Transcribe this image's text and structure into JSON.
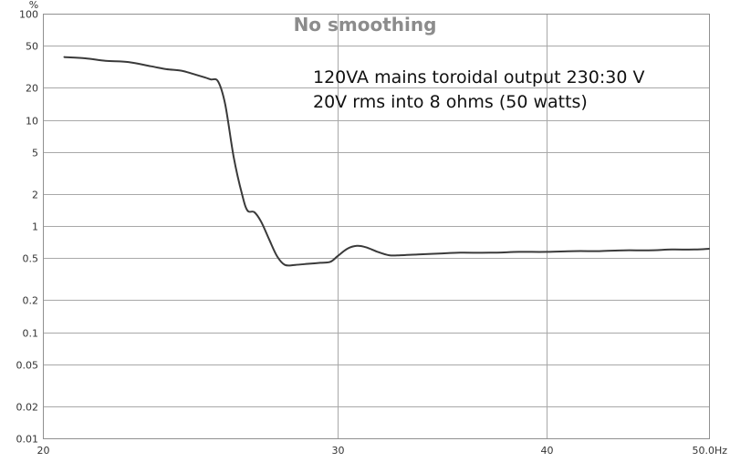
{
  "chart_data": {
    "type": "line",
    "title": "No smoothing",
    "annotations": [
      "120VA mains toroidal output 230:30 V",
      "20V rms into 8 ohms (50 watts)"
    ],
    "xlabel": "",
    "ylabel": "",
    "y_unit_label": "%",
    "x_scale": "log",
    "y_scale": "log",
    "xlim": [
      20,
      50
    ],
    "ylim": [
      0.01,
      100
    ],
    "x_ticks": [
      {
        "value": 20,
        "label": "20"
      },
      {
        "value": 30,
        "label": "30"
      },
      {
        "value": 40,
        "label": "40"
      },
      {
        "value": 50,
        "label": "50.0Hz"
      }
    ],
    "y_ticks": [
      {
        "value": 100,
        "label": "100"
      },
      {
        "value": 50,
        "label": "50"
      },
      {
        "value": 20,
        "label": "20"
      },
      {
        "value": 10,
        "label": "10"
      },
      {
        "value": 5,
        "label": "5"
      },
      {
        "value": 2,
        "label": "2"
      },
      {
        "value": 1,
        "label": "1"
      },
      {
        "value": 0.5,
        "label": "0.5"
      },
      {
        "value": 0.2,
        "label": "0.2"
      },
      {
        "value": 0.1,
        "label": "0.1"
      },
      {
        "value": 0.05,
        "label": "0.05"
      },
      {
        "value": 0.02,
        "label": "0.02"
      },
      {
        "value": 0.01,
        "label": "0.01"
      }
    ],
    "grid": true,
    "colors": {
      "line": "#3a3a3a",
      "grid": "#a8a8a8",
      "axis": "#909090",
      "title": "#8c8c8c",
      "tick_text": "#333333",
      "annotation": "#111111"
    },
    "series": [
      {
        "x": [
          20.6,
          21.2,
          21.8,
          22.5,
          23.2,
          23.7,
          24.2,
          24.6,
          25.0,
          25.2,
          25.45,
          25.7,
          26.0,
          26.3,
          26.5,
          26.75,
          27.0,
          27.3,
          27.6,
          27.9,
          28.3,
          28.8,
          29.3,
          29.7,
          30.0,
          30.4,
          30.8,
          31.2,
          31.7,
          32.2,
          32.7,
          33.5,
          34.5,
          35.5,
          37.0,
          38.5,
          40.0,
          41.5,
          43.0,
          44.5,
          46.0,
          47.5,
          49.0,
          50.0
        ],
        "y": [
          39,
          38,
          36,
          35,
          32,
          30,
          29,
          27,
          25,
          24,
          23,
          14,
          4.5,
          2.0,
          1.4,
          1.35,
          1.1,
          0.75,
          0.52,
          0.43,
          0.43,
          0.44,
          0.45,
          0.46,
          0.52,
          0.61,
          0.65,
          0.63,
          0.57,
          0.53,
          0.53,
          0.54,
          0.55,
          0.56,
          0.56,
          0.57,
          0.57,
          0.58,
          0.58,
          0.59,
          0.59,
          0.6,
          0.6,
          0.61
        ]
      }
    ]
  }
}
